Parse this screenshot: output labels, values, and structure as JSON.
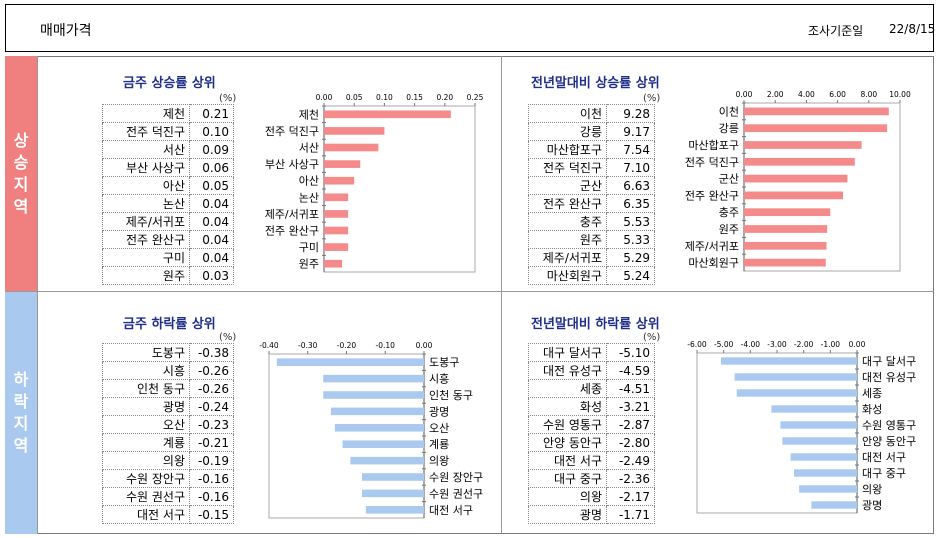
{
  "header": {
    "title": "매매가격",
    "date_label": "조사기준일",
    "date_value": "22/8/15"
  },
  "sections": {
    "up_label": "상승지역",
    "down_label": "하락지역"
  },
  "unit": "(%)",
  "colors": {
    "up_bar": "#f48a8a",
    "down_bar": "#a9c9ef",
    "up_side": "#f08080",
    "down_side": "#a9c9ef",
    "title": "#1f2f8a"
  },
  "chart_data": [
    {
      "id": "weekly_up",
      "type": "bar",
      "orientation": "horizontal",
      "direction": "up",
      "title": "금주 상승률 상위",
      "categories": [
        "제천",
        "전주 덕진구",
        "서산",
        "부산 사상구",
        "아산",
        "논산",
        "제주/서귀포",
        "전주 완산구",
        "구미",
        "원주"
      ],
      "values": [
        0.21,
        0.1,
        0.09,
        0.06,
        0.05,
        0.04,
        0.04,
        0.04,
        0.04,
        0.03
      ],
      "display": [
        "0.21",
        "0.10",
        "0.09",
        "0.06",
        "0.05",
        "0.04",
        "0.04",
        "0.04",
        "0.04",
        "0.03"
      ],
      "xlim": [
        0,
        0.25
      ],
      "ticks": [
        "0.00",
        "0.05",
        "0.10",
        "0.15",
        "0.20",
        "0.25"
      ]
    },
    {
      "id": "ytd_up",
      "type": "bar",
      "orientation": "horizontal",
      "direction": "up",
      "title": "전년말대비 상승률 상위",
      "categories": [
        "이천",
        "강릉",
        "마산합포구",
        "전주 덕진구",
        "군산",
        "전주 완산구",
        "충주",
        "원주",
        "제주/서귀포",
        "마산회원구"
      ],
      "values": [
        9.28,
        9.17,
        7.54,
        7.1,
        6.63,
        6.35,
        5.53,
        5.33,
        5.29,
        5.24
      ],
      "display": [
        "9.28",
        "9.17",
        "7.54",
        "7.10",
        "6.63",
        "6.35",
        "5.53",
        "5.33",
        "5.29",
        "5.24"
      ],
      "xlim": [
        0,
        10
      ],
      "ticks": [
        "0.00",
        "2.00",
        "4.00",
        "6.00",
        "8.00",
        "10.00"
      ]
    },
    {
      "id": "weekly_down",
      "type": "bar",
      "orientation": "horizontal",
      "direction": "down",
      "title": "금주 하락률 상위",
      "categories": [
        "도봉구",
        "시흥",
        "인천 동구",
        "광명",
        "오산",
        "계룡",
        "의왕",
        "수원 장안구",
        "수원 권선구",
        "대전 서구"
      ],
      "values": [
        -0.38,
        -0.26,
        -0.26,
        -0.24,
        -0.23,
        -0.21,
        -0.19,
        -0.16,
        -0.16,
        -0.15
      ],
      "display": [
        "-0.38",
        "-0.26",
        "-0.26",
        "-0.24",
        "-0.23",
        "-0.21",
        "-0.19",
        "-0.16",
        "-0.16",
        "-0.15"
      ],
      "xlim": [
        -0.4,
        0
      ],
      "ticks": [
        "-0.40",
        "-0.30",
        "-0.20",
        "-0.10",
        "0.00"
      ]
    },
    {
      "id": "ytd_down",
      "type": "bar",
      "orientation": "horizontal",
      "direction": "down",
      "title": "전년말대비 하락률 상위",
      "categories": [
        "대구 달서구",
        "대전 유성구",
        "세종",
        "화성",
        "수원 영통구",
        "안양 동안구",
        "대전 서구",
        "대구 중구",
        "의왕",
        "광명"
      ],
      "values": [
        -5.1,
        -4.59,
        -4.51,
        -3.21,
        -2.87,
        -2.8,
        -2.49,
        -2.36,
        -2.17,
        -1.71
      ],
      "display": [
        "-5.10",
        "-4.59",
        "-4.51",
        "-3.21",
        "-2.87",
        "-2.80",
        "-2.49",
        "-2.36",
        "-2.17",
        "-1.71"
      ],
      "xlim": [
        -6,
        0
      ],
      "ticks": [
        "-6.00",
        "-5.00",
        "-4.00",
        "-3.00",
        "-2.00",
        "-1.00",
        "0.00"
      ]
    }
  ]
}
